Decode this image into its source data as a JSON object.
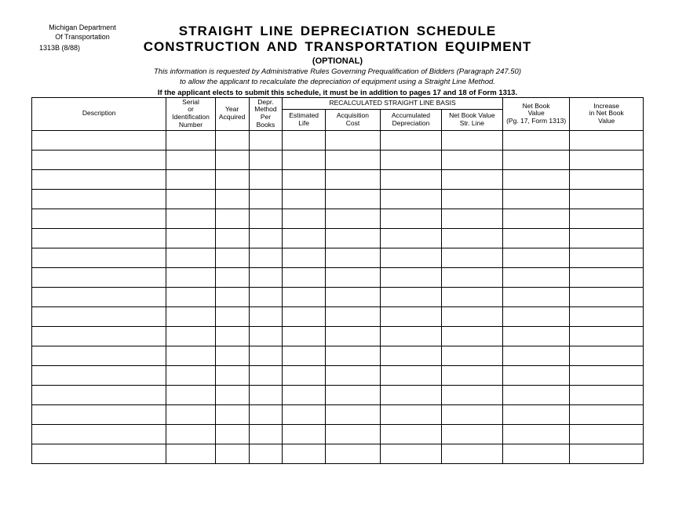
{
  "header": {
    "dept_line1": "Michigan Department",
    "dept_line2": "Of Transportation",
    "form_no": "1313B (8/88)",
    "title_line1": "STRAIGHT  LINE  DEPRECIATION  SCHEDULE",
    "title_line2": "CONSTRUCTION  AND  TRANSPORTATION  EQUIPMENT",
    "optional": "(OPTIONAL)",
    "note1": "This information is requested by Administrative Rules Governing Prequalification  of Bidders (Paragraph 247.50)",
    "note2": "to allow the applicant to recalculate the depreciation of equipment using a Straight Line Method.",
    "note3": "If the applicant elects to submit this schedule, it must be in addition to pages 17 and 18 of Form 1313."
  },
  "table": {
    "columns": {
      "c1": "Description",
      "c2": "Serial\nor\nIdentification\nNumber",
      "c3": "Year\nAcquired",
      "c4": "Depr.\nMethod\nPer\nBooks",
      "group": "RECALCULATED STRAIGHT LINE BASIS",
      "c5": "Estimated\nLife",
      "c6": "Acquisition\nCost",
      "c7": "Accumulated\nDepreciation",
      "c8": "Net Book Value\nStr. Line",
      "c9": "Net Book\nValue\n(Pg. 17, Form 1313)",
      "c10": "Increase\nin Net Book\nValue"
    },
    "blank_rows": 17,
    "col_widths_pct": [
      22,
      8,
      5.5,
      5.5,
      7,
      9,
      10,
      10,
      11,
      12
    ],
    "border_color": "#000000",
    "background_color": "#ffffff"
  }
}
